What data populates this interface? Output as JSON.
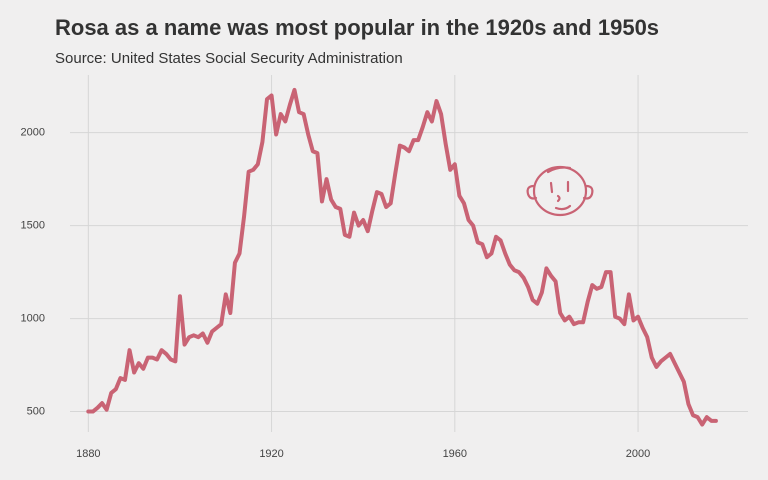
{
  "chart_data": {
    "type": "line",
    "title": "Rosa as a name was most popular in the 1920s and 1950s",
    "subtitle": "Source: United States Social Security Administration",
    "x": [
      1880,
      1881,
      1882,
      1883,
      1884,
      1885,
      1886,
      1887,
      1888,
      1889,
      1890,
      1891,
      1892,
      1893,
      1894,
      1895,
      1896,
      1897,
      1898,
      1899,
      1900,
      1901,
      1902,
      1903,
      1904,
      1905,
      1906,
      1907,
      1908,
      1909,
      1910,
      1911,
      1912,
      1913,
      1914,
      1915,
      1916,
      1917,
      1918,
      1919,
      1920,
      1921,
      1922,
      1923,
      1924,
      1925,
      1926,
      1927,
      1928,
      1929,
      1930,
      1931,
      1932,
      1933,
      1934,
      1935,
      1936,
      1937,
      1938,
      1939,
      1940,
      1941,
      1942,
      1943,
      1944,
      1945,
      1946,
      1947,
      1948,
      1949,
      1950,
      1951,
      1952,
      1953,
      1954,
      1955,
      1956,
      1957,
      1958,
      1959,
      1960,
      1961,
      1962,
      1963,
      1964,
      1965,
      1966,
      1967,
      1968,
      1969,
      1970,
      1971,
      1972,
      1973,
      1974,
      1975,
      1976,
      1977,
      1978,
      1979,
      1980,
      1981,
      1982,
      1983,
      1984,
      1985,
      1986,
      1987,
      1988,
      1989,
      1990,
      1991,
      1992,
      1993,
      1994,
      1995,
      1996,
      1997,
      1998,
      1999,
      2000,
      2001,
      2002,
      2003,
      2004,
      2005,
      2006,
      2007,
      2008,
      2009,
      2010,
      2011,
      2012,
      2013,
      2014,
      2015,
      2016,
      2017
    ],
    "series": [
      {
        "name": "Rosa",
        "color": "#c96374",
        "values": [
          500,
          500,
          520,
          545,
          510,
          600,
          620,
          680,
          670,
          830,
          710,
          760,
          730,
          790,
          790,
          780,
          830,
          810,
          780,
          770,
          1120,
          860,
          900,
          910,
          900,
          920,
          870,
          930,
          950,
          970,
          1130,
          1030,
          1300,
          1350,
          1550,
          1790,
          1800,
          1830,
          1950,
          2180,
          2200,
          1990,
          2100,
          2060,
          2150,
          2230,
          2110,
          2100,
          1990,
          1900,
          1890,
          1630,
          1750,
          1640,
          1600,
          1590,
          1450,
          1440,
          1570,
          1500,
          1530,
          1470,
          1580,
          1680,
          1670,
          1600,
          1620,
          1780,
          1930,
          1920,
          1900,
          1960,
          1960,
          2030,
          2110,
          2060,
          2170,
          2100,
          1940,
          1800,
          1830,
          1660,
          1620,
          1530,
          1500,
          1410,
          1400,
          1330,
          1350,
          1440,
          1420,
          1350,
          1290,
          1260,
          1250,
          1220,
          1170,
          1100,
          1080,
          1140,
          1270,
          1230,
          1200,
          1030,
          990,
          1010,
          970,
          980,
          980,
          1090,
          1180,
          1160,
          1170,
          1250,
          1250,
          1010,
          1000,
          970,
          1130,
          990,
          1010,
          950,
          900,
          790,
          740,
          770,
          790,
          810,
          760,
          710,
          660,
          540,
          480,
          470,
          430,
          470,
          450,
          450
        ]
      }
    ],
    "xlim": [
      1876,
      2024
    ],
    "xticks": [
      1880,
      1920,
      1960,
      2000
    ],
    "ylim": [
      390,
      2310
    ],
    "yticks": [
      500,
      1000,
      1500,
      2000
    ],
    "grid": true
  }
}
